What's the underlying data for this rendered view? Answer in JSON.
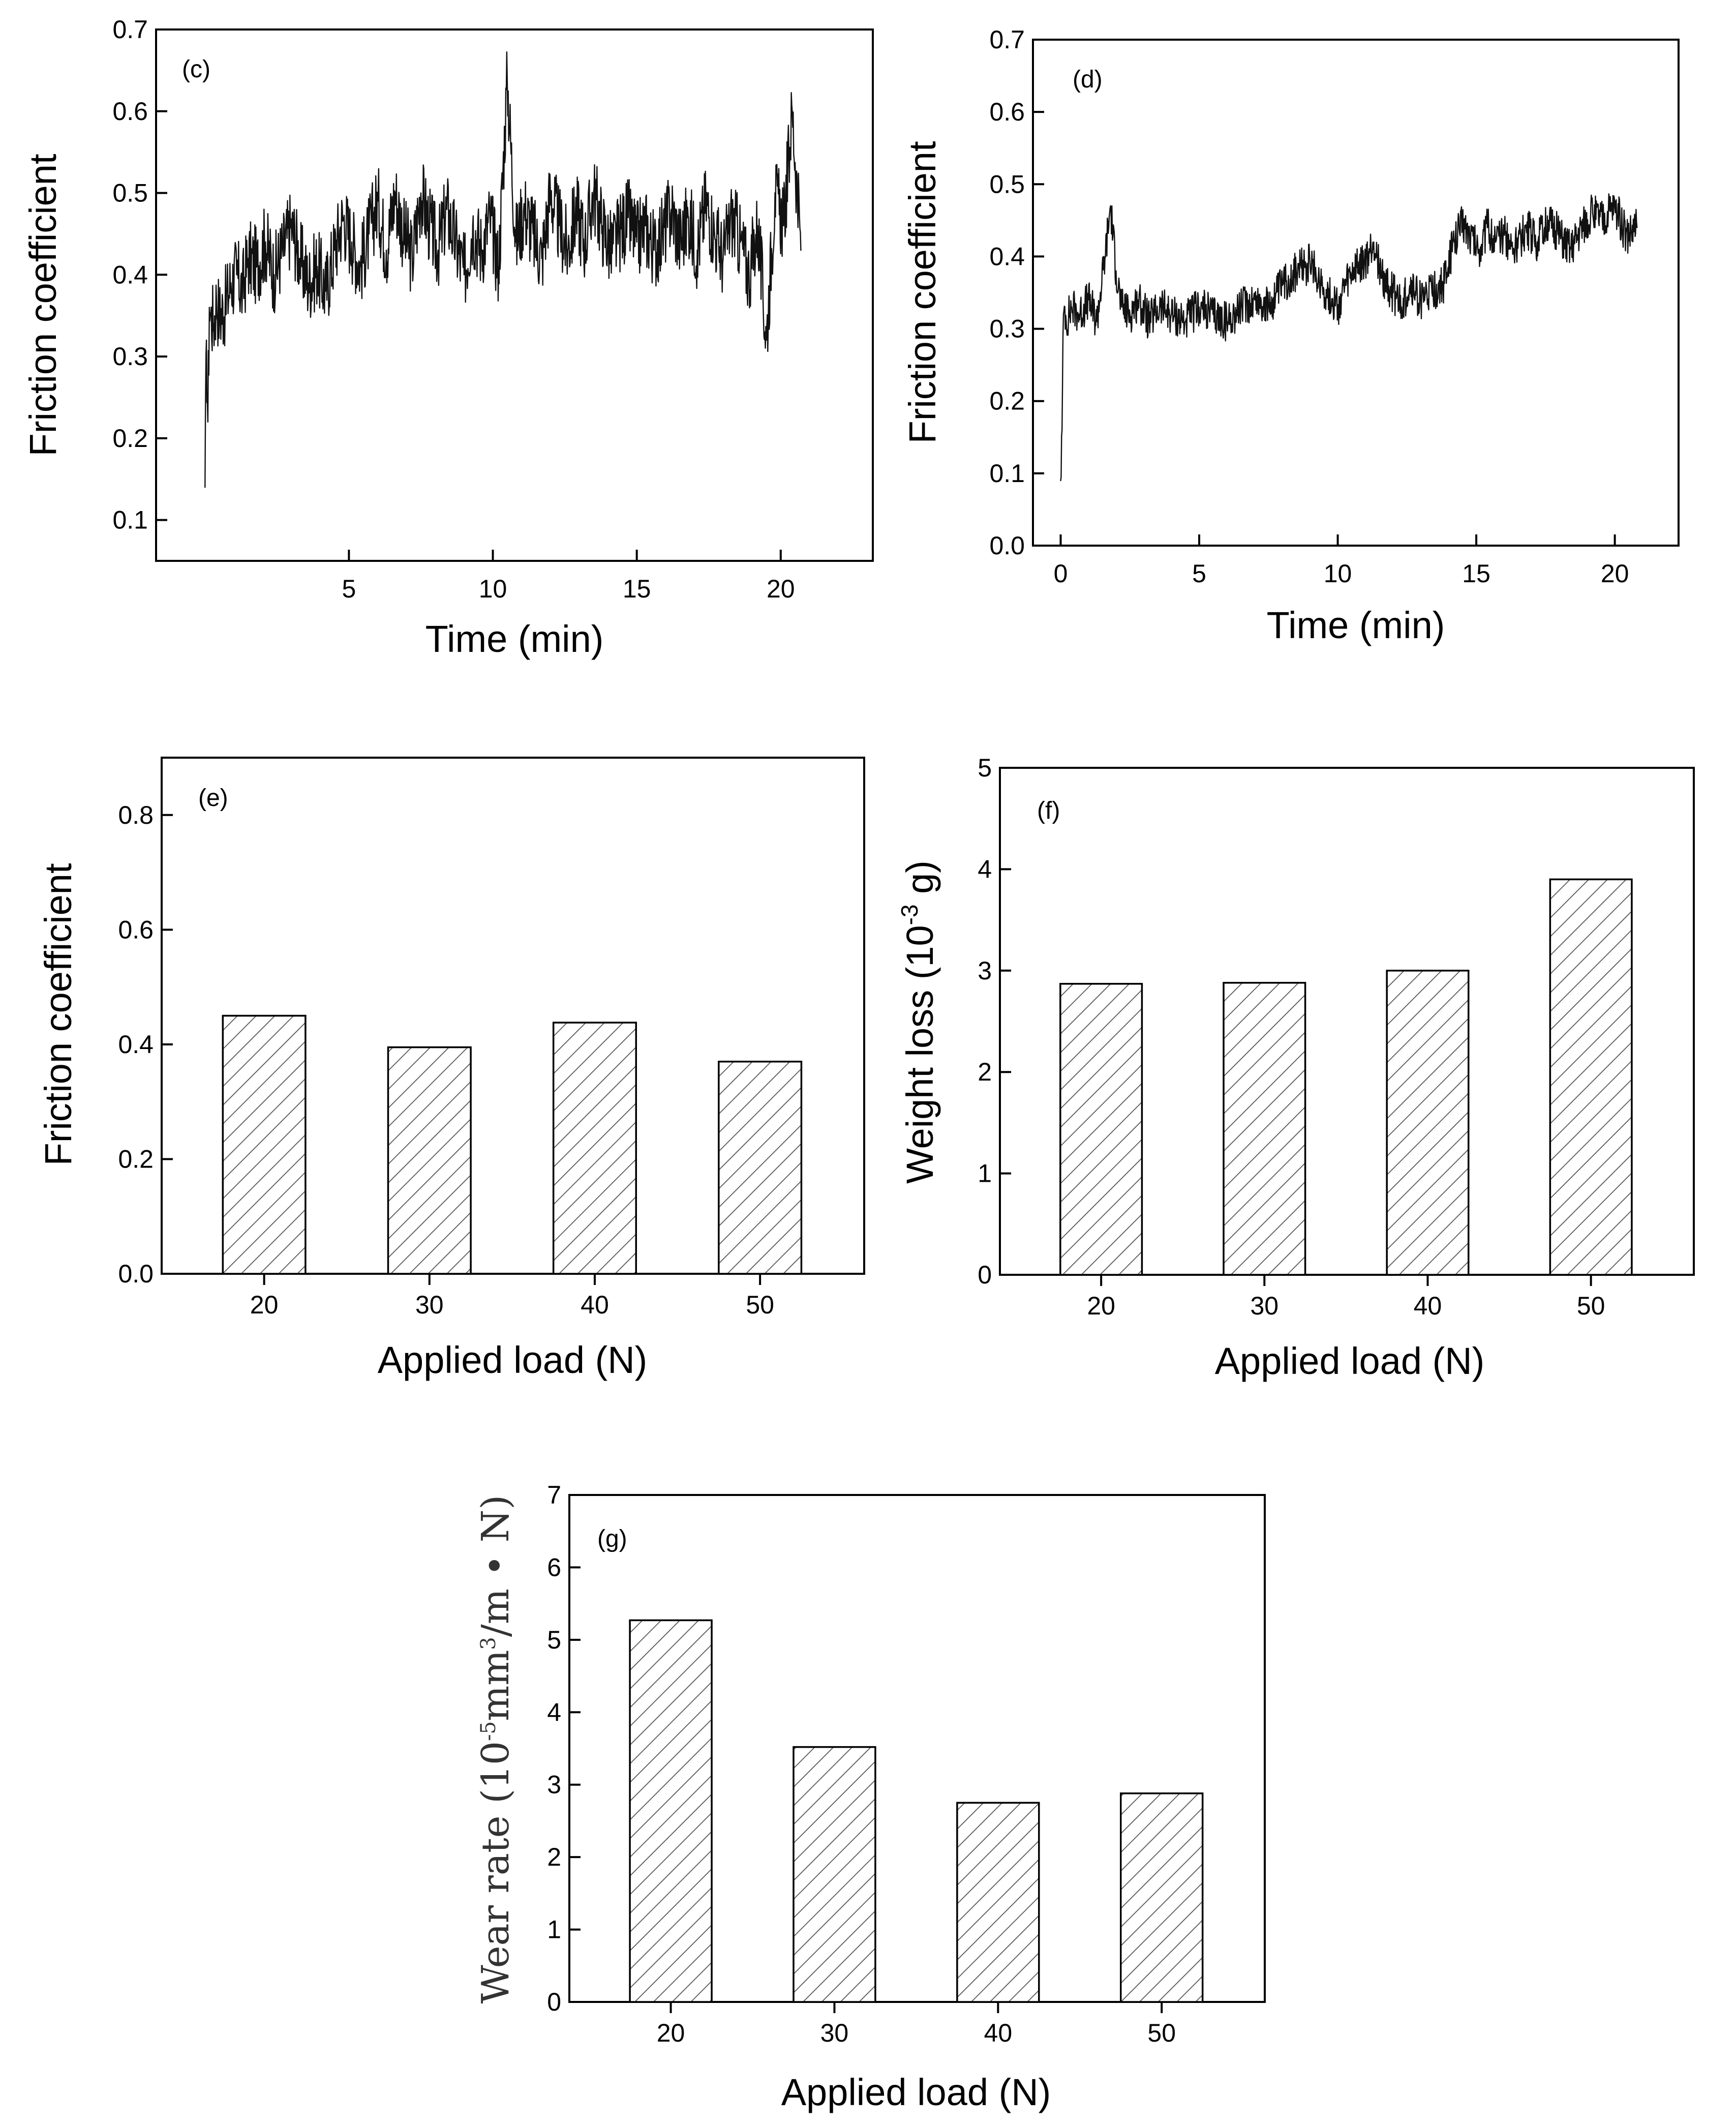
{
  "figure": {
    "background": "#ffffff",
    "ink": "#000000",
    "bar_fill": "hatched",
    "hatch_color": "#555555"
  },
  "chart_data": [
    {
      "id": "c",
      "type": "line",
      "panel_label": "(c)",
      "xlabel": "Time (min)",
      "ylabel": "Friction coefficient",
      "xlim": [
        -1.7,
        23.2
      ],
      "ylim": [
        0.05,
        0.7
      ],
      "xticks": [
        5,
        10,
        15,
        20
      ],
      "yticks": [
        0.1,
        0.2,
        0.3,
        0.4,
        0.5,
        0.6,
        0.7
      ],
      "ytick_labels": [
        "0.1",
        "0.2",
        "0.3",
        "0.4",
        "0.5",
        "0.6",
        "0.7"
      ],
      "grid": false,
      "legend": "none",
      "series": [
        {
          "x": [
            0.0,
            0.05,
            0.1,
            0.15,
            0.2,
            0.3,
            0.4,
            0.5,
            0.7,
            0.9,
            1.1,
            1.3,
            1.5,
            1.8,
            2.1,
            2.4,
            2.7,
            3.0,
            3.3,
            3.6,
            3.9,
            4.2,
            4.5,
            4.8,
            5.1,
            5.4,
            5.7,
            6.0,
            6.3,
            6.6,
            6.9,
            7.2,
            7.5,
            7.8,
            8.1,
            8.4,
            8.7,
            9.0,
            9.3,
            9.6,
            9.9,
            10.2,
            10.5,
            10.8,
            11.1,
            11.4,
            11.7,
            12.0,
            12.3,
            12.6,
            12.9,
            13.2,
            13.5,
            13.8,
            14.1,
            14.4,
            14.7,
            15.0,
            15.3,
            15.6,
            15.9,
            16.2,
            16.5,
            16.8,
            17.1,
            17.4,
            17.7,
            18.0,
            18.3,
            18.6,
            18.9,
            19.2,
            19.5,
            19.8,
            20.1,
            20.4,
            20.7
          ],
          "y": [
            0.14,
            0.32,
            0.22,
            0.36,
            0.35,
            0.34,
            0.37,
            0.35,
            0.36,
            0.39,
            0.4,
            0.38,
            0.42,
            0.41,
            0.44,
            0.4,
            0.43,
            0.46,
            0.42,
            0.39,
            0.41,
            0.38,
            0.43,
            0.47,
            0.44,
            0.41,
            0.45,
            0.49,
            0.43,
            0.5,
            0.45,
            0.42,
            0.5,
            0.46,
            0.43,
            0.48,
            0.44,
            0.4,
            0.46,
            0.43,
            0.47,
            0.41,
            0.64,
            0.44,
            0.48,
            0.45,
            0.42,
            0.5,
            0.46,
            0.43,
            0.48,
            0.44,
            0.5,
            0.46,
            0.43,
            0.45,
            0.47,
            0.44,
            0.46,
            0.43,
            0.45,
            0.48,
            0.44,
            0.47,
            0.43,
            0.49,
            0.45,
            0.42,
            0.47,
            0.44,
            0.4,
            0.46,
            0.32,
            0.5,
            0.46,
            0.6,
            0.43
          ]
        }
      ]
    },
    {
      "id": "d",
      "type": "line",
      "panel_label": "(d)",
      "xlabel": "Time (min)",
      "ylabel": "Friction coefficient",
      "xlim": [
        -1.0,
        22.3
      ],
      "ylim": [
        0.0,
        0.7
      ],
      "xticks": [
        0,
        5,
        10,
        15,
        20
      ],
      "yticks": [
        0.0,
        0.1,
        0.2,
        0.3,
        0.4,
        0.5,
        0.6,
        0.7
      ],
      "ytick_labels": [
        "0.0",
        "0.1",
        "0.2",
        "0.3",
        "0.4",
        "0.5",
        "0.6",
        "0.7"
      ],
      "grid": false,
      "legend": "none",
      "series": [
        {
          "x": [
            0.0,
            0.05,
            0.1,
            0.15,
            0.2,
            0.4,
            0.7,
            1.0,
            1.3,
            1.6,
            1.8,
            2.0,
            2.2,
            2.5,
            2.8,
            3.2,
            3.6,
            4.0,
            4.5,
            5.0,
            5.5,
            6.0,
            6.5,
            7.0,
            7.5,
            8.0,
            8.5,
            9.0,
            9.3,
            9.6,
            10.0,
            10.3,
            10.6,
            11.0,
            11.3,
            11.6,
            12.0,
            12.3,
            12.6,
            13.0,
            13.4,
            13.8,
            14.2,
            14.5,
            14.8,
            15.1,
            15.4,
            15.7,
            16.0,
            16.4,
            16.8,
            17.2,
            17.6,
            18.0,
            18.4,
            18.8,
            19.2,
            19.6,
            20.0,
            20.4,
            20.8
          ],
          "y": [
            0.09,
            0.16,
            0.32,
            0.33,
            0.31,
            0.33,
            0.32,
            0.34,
            0.31,
            0.4,
            0.47,
            0.38,
            0.33,
            0.32,
            0.34,
            0.31,
            0.33,
            0.32,
            0.31,
            0.33,
            0.32,
            0.31,
            0.33,
            0.34,
            0.33,
            0.36,
            0.38,
            0.39,
            0.37,
            0.35,
            0.33,
            0.36,
            0.38,
            0.39,
            0.42,
            0.37,
            0.35,
            0.33,
            0.36,
            0.34,
            0.35,
            0.36,
            0.42,
            0.45,
            0.43,
            0.41,
            0.44,
            0.42,
            0.43,
            0.41,
            0.44,
            0.42,
            0.45,
            0.43,
            0.41,
            0.44,
            0.46,
            0.45,
            0.47,
            0.43,
            0.44
          ]
        }
      ]
    },
    {
      "id": "e",
      "type": "bar",
      "panel_label": "(e)",
      "xlabel": "Applied load (N)",
      "ylabel": "Friction coefficient",
      "categories": [
        "20",
        "30",
        "40",
        "50"
      ],
      "ylim": [
        0.0,
        0.9
      ],
      "yticks": [
        0.0,
        0.2,
        0.4,
        0.6,
        0.8
      ],
      "ytick_labels": [
        "0.0",
        "0.2",
        "0.4",
        "0.6",
        "0.8"
      ],
      "grid": false,
      "legend": "none",
      "series": [
        {
          "values": [
            0.45,
            0.395,
            0.438,
            0.37
          ]
        }
      ]
    },
    {
      "id": "f",
      "type": "bar",
      "panel_label": "(f)",
      "xlabel": "Applied load (N)",
      "ylabel_main": "Weight loss (10",
      "ylabel_sup": "-3",
      "ylabel_end": " g)",
      "categories": [
        "20",
        "30",
        "40",
        "50"
      ],
      "ylim": [
        0,
        5
      ],
      "yticks": [
        0,
        1,
        2,
        3,
        4,
        5
      ],
      "ytick_labels": [
        "0",
        "1",
        "2",
        "3",
        "4",
        "5"
      ],
      "grid": false,
      "legend": "none",
      "series": [
        {
          "values": [
            2.87,
            2.88,
            3.0,
            3.9
          ]
        }
      ]
    },
    {
      "id": "g",
      "type": "bar",
      "panel_label": "(g)",
      "xlabel": "Applied load (N)",
      "ylabel_main": "Wear rate (10",
      "ylabel_sup": "-5",
      "ylabel_mid": "mm",
      "ylabel_sup2": "3",
      "ylabel_end": "/m • N)",
      "categories": [
        "20",
        "30",
        "40",
        "50"
      ],
      "ylim": [
        0,
        7
      ],
      "yticks": [
        0,
        1,
        2,
        3,
        4,
        5,
        6,
        7
      ],
      "ytick_labels": [
        "0",
        "1",
        "2",
        "3",
        "4",
        "5",
        "6",
        "7"
      ],
      "grid": false,
      "legend": "none",
      "series": [
        {
          "values": [
            5.27,
            3.52,
            2.75,
            2.88
          ]
        }
      ]
    }
  ]
}
